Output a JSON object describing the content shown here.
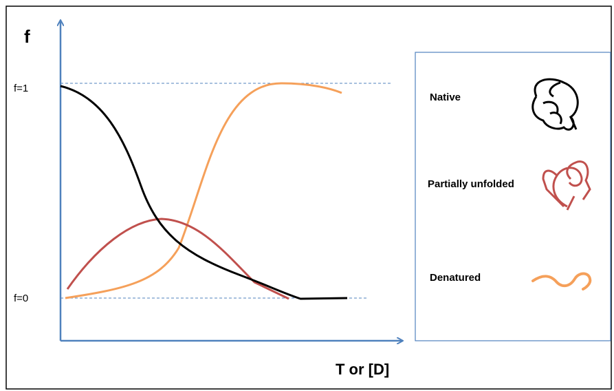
{
  "axis": {
    "y_label": "f",
    "x_label": "T or [D]",
    "y_top_label": "f=1",
    "y_bottom_label": "f=0"
  },
  "legend": {
    "items": [
      {
        "label": "Native"
      },
      {
        "label": "Partially unfolded"
      },
      {
        "label": "Denatured"
      }
    ]
  }
}
